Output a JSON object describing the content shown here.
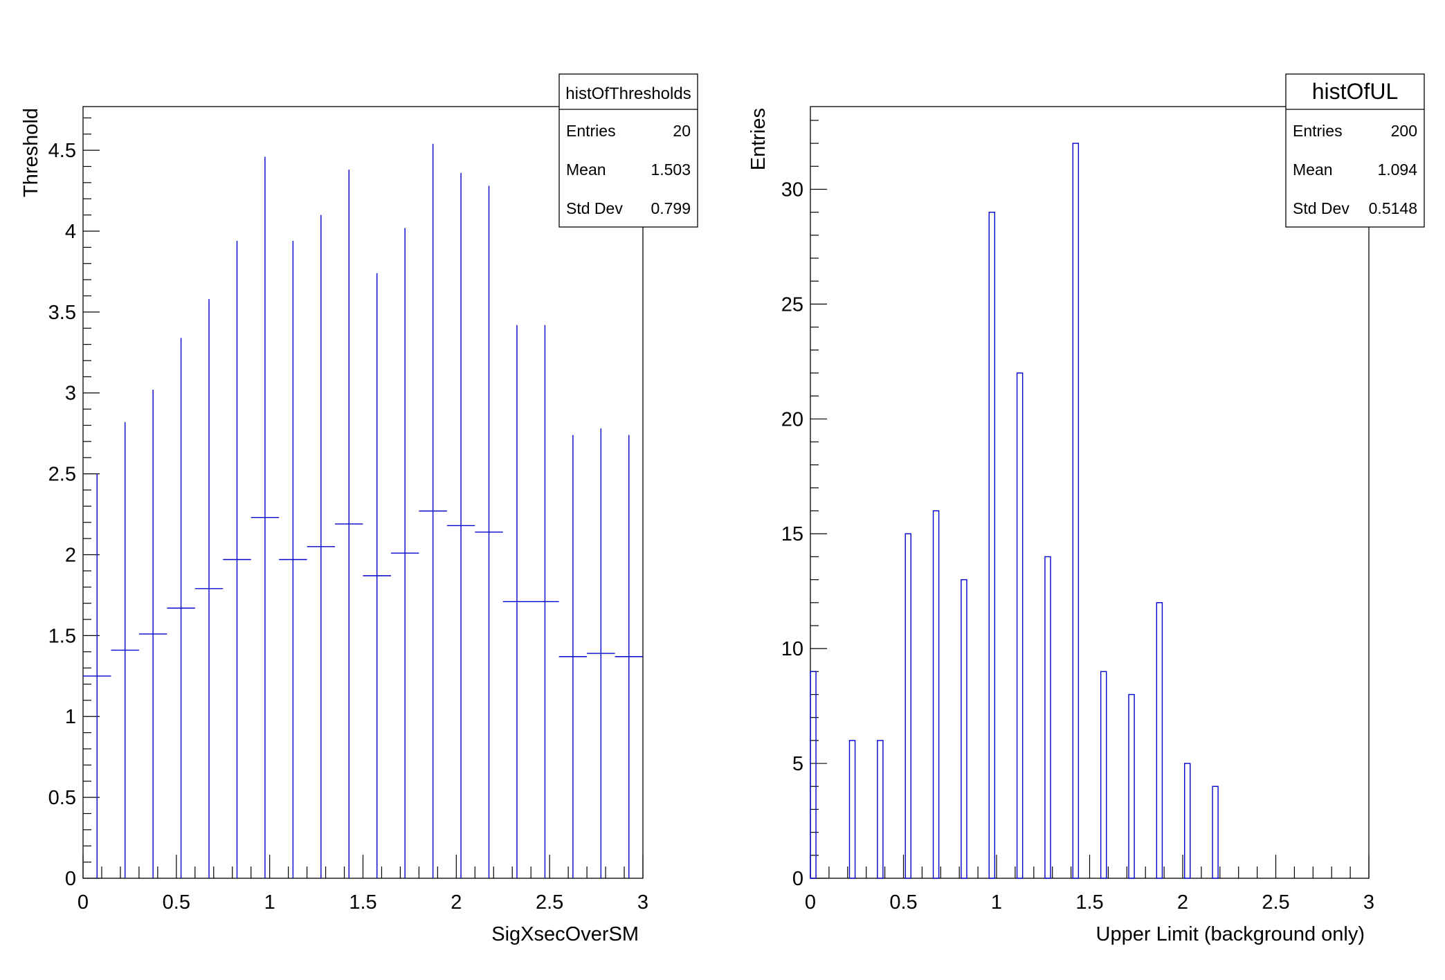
{
  "chart_data": [
    {
      "type": "scatter",
      "stats_title": "histOfThresholds",
      "stats": [
        {
          "label": "Entries",
          "value": "20"
        },
        {
          "label": "Mean",
          "value": "1.503"
        },
        {
          "label": "Std Dev",
          "value": "0.799"
        }
      ],
      "xlabel": "SigXsecOverSM",
      "ylabel": "Threshold",
      "xlim": [
        0,
        3
      ],
      "ylim": [
        0,
        4.77
      ],
      "xticks": [
        "0",
        "0.5",
        "1",
        "1.5",
        "2",
        "2.5",
        "3"
      ],
      "yticks": [
        "0",
        "0.5",
        "1",
        "1.5",
        "2",
        "2.5",
        "3",
        "3.5",
        "4",
        "4.5"
      ],
      "x_bin_width": 0.15,
      "x": [
        0.075,
        0.225,
        0.375,
        0.525,
        0.675,
        0.825,
        0.975,
        1.125,
        1.275,
        1.425,
        1.575,
        1.725,
        1.875,
        2.025,
        2.175,
        2.325,
        2.475,
        2.625,
        2.775,
        2.925
      ],
      "y": [
        1.25,
        1.41,
        1.51,
        1.67,
        1.79,
        1.97,
        2.23,
        1.97,
        2.05,
        2.19,
        1.87,
        2.01,
        2.27,
        2.18,
        2.14,
        1.71,
        1.71,
        1.37,
        1.39,
        1.37
      ],
      "y_error": [
        1.25,
        1.41,
        1.51,
        1.67,
        1.79,
        1.97,
        2.23,
        1.97,
        2.05,
        2.19,
        1.87,
        2.01,
        2.27,
        2.18,
        2.14,
        1.71,
        1.71,
        1.37,
        1.39,
        1.37
      ],
      "color": "#0000cc",
      "grid": false
    },
    {
      "type": "bar",
      "stats_title": "histOfUL",
      "stats": [
        {
          "label": "Entries",
          "value": "200"
        },
        {
          "label": "Mean",
          "value": "1.094"
        },
        {
          "label": "Std Dev",
          "value": "0.5148"
        }
      ],
      "xlabel": "Upper Limit (background only)",
      "ylabel": "Entries",
      "xlim": [
        0,
        3
      ],
      "ylim": [
        0,
        33.6
      ],
      "xticks": [
        "0",
        "0.5",
        "1",
        "1.5",
        "2",
        "2.5",
        "3"
      ],
      "yticks": [
        "0",
        "5",
        "10",
        "15",
        "20",
        "25",
        "30"
      ],
      "bin_width": 0.03,
      "bin_low_edges": [
        0,
        0.21,
        0.36,
        0.51,
        0.66,
        0.81,
        0.96,
        1.11,
        1.26,
        1.41,
        1.56,
        1.71,
        1.86,
        2.01,
        2.16
      ],
      "values": [
        9,
        6,
        6,
        15,
        16,
        13,
        29,
        22,
        14,
        32,
        9,
        8,
        12,
        5,
        4
      ],
      "color": "#0000cc",
      "grid": false
    }
  ]
}
